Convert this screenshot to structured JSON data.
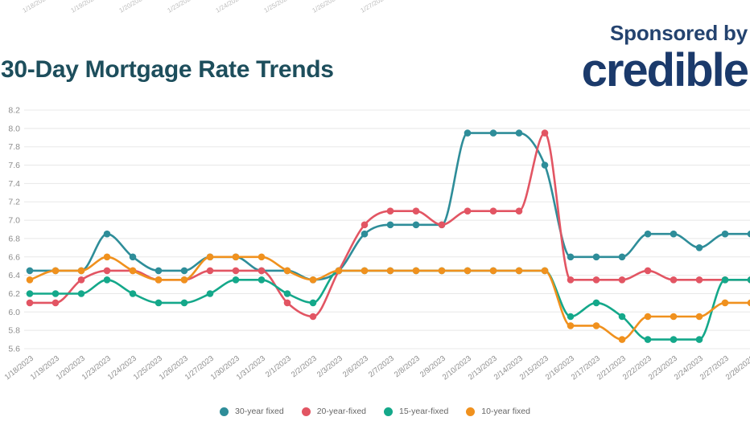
{
  "header": {
    "title": "30-Day Mortgage Rate Trends",
    "sponsored_by": "Sponsored by",
    "sponsor_logo_text": "credible"
  },
  "top_row": {
    "dates": [
      "1/18/2023",
      "1/19/2023",
      "1/20/2023",
      "1/23/2023",
      "1/24/2023",
      "1/25/2023",
      "1/26/2023",
      "1/27/2023"
    ]
  },
  "chart_data": {
    "type": "line",
    "title": "30-Day Mortgage Rate Trends",
    "categories": [
      "1/18/2023",
      "1/19/2023",
      "1/20/2023",
      "1/23/2023",
      "1/24/2023",
      "1/25/2023",
      "1/26/2023",
      "1/27/2023",
      "1/30/2023",
      "1/31/2023",
      "2/1/2023",
      "2/2/2023",
      "2/3/2023",
      "2/6/2023",
      "2/7/2023",
      "2/8/2023",
      "2/9/2023",
      "2/10/2023",
      "2/13/2023",
      "2/14/2023",
      "2/15/2023",
      "2/16/2023",
      "2/17/2023",
      "2/21/2023",
      "2/22/2023",
      "2/23/2023",
      "2/24/2023",
      "2/27/2023",
      "2/28/2023"
    ],
    "series": [
      {
        "name": "30-year fixed",
        "color": "#2e8d99",
        "values": [
          6.45,
          6.45,
          6.45,
          6.85,
          6.6,
          6.45,
          6.45,
          6.6,
          6.6,
          6.45,
          6.45,
          6.35,
          6.45,
          6.85,
          6.95,
          6.95,
          6.95,
          7.95,
          7.95,
          7.95,
          7.6,
          6.6,
          6.6,
          6.6,
          6.85,
          6.85,
          6.7,
          6.85,
          6.85
        ]
      },
      {
        "name": "20-year-fixed",
        "color": "#e25563",
        "values": [
          6.1,
          6.1,
          6.35,
          6.45,
          6.45,
          6.35,
          6.35,
          6.45,
          6.45,
          6.45,
          6.1,
          5.95,
          6.45,
          6.95,
          7.1,
          7.1,
          6.95,
          7.1,
          7.1,
          7.1,
          7.95,
          6.35,
          6.35,
          6.35,
          6.45,
          6.35,
          6.35,
          6.35,
          6.35
        ]
      },
      {
        "name": "15-year-fixed",
        "color": "#14a88a",
        "values": [
          6.2,
          6.2,
          6.2,
          6.35,
          6.2,
          6.1,
          6.1,
          6.2,
          6.35,
          6.35,
          6.2,
          6.1,
          6.45,
          6.45,
          6.45,
          6.45,
          6.45,
          6.45,
          6.45,
          6.45,
          6.45,
          5.95,
          6.1,
          5.95,
          5.7,
          5.7,
          5.7,
          6.35,
          6.35
        ]
      },
      {
        "name": "10-year fixed",
        "color": "#f0911e",
        "values": [
          6.35,
          6.45,
          6.45,
          6.6,
          6.45,
          6.35,
          6.35,
          6.6,
          6.6,
          6.6,
          6.45,
          6.35,
          6.45,
          6.45,
          6.45,
          6.45,
          6.45,
          6.45,
          6.45,
          6.45,
          6.45,
          5.85,
          5.85,
          5.7,
          5.95,
          5.95,
          5.95,
          6.1,
          6.1
        ]
      }
    ],
    "ylim": [
      5.6,
      8.2
    ],
    "ytick_step": 0.2,
    "y_tick_labels": [
      "8.2",
      "8.0",
      "7.8",
      "7.6",
      "7.4",
      "7.2",
      "7.0",
      "6.8",
      "6.6",
      "6.4",
      "6.2",
      "6.0",
      "5.8",
      "5.6"
    ],
    "xlabel": "",
    "ylabel": "",
    "grid": true,
    "legend_position": "bottom",
    "gridline_color": "#e8e8e8",
    "axis_label_color": "#8d8d8d"
  },
  "colors": {
    "title": "#1d4e5c",
    "sponsor_navy": "#1b3a6b"
  }
}
